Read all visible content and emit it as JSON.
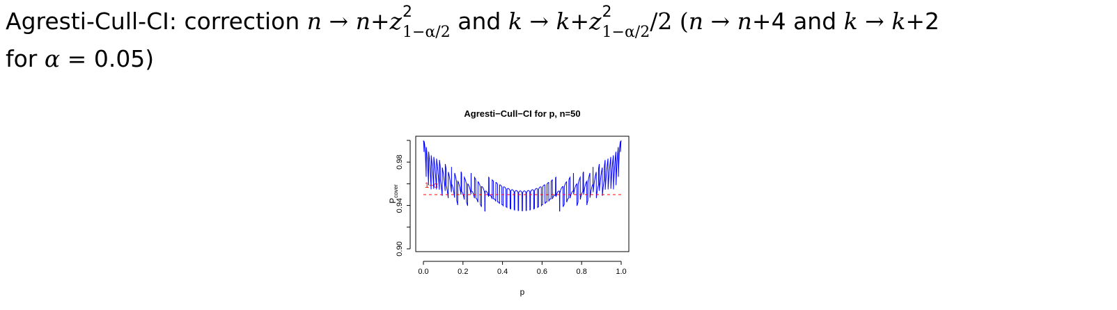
{
  "headline": {
    "line1_prefix": "Agresti-Cull-CI: correction ",
    "n": "n",
    "arrow": "→",
    "plus": "+",
    "z": "z",
    "sq": "2",
    "sub": "1−α/2",
    "and": "and",
    "k": "k",
    "half": "/2",
    "paren_open": "(",
    "n_plus_4": "4",
    "k_plus_2": "2",
    "line2_for": "for",
    "alpha": "α",
    "equals": "=",
    "alpha_value": "0.05)"
  },
  "chart_data": {
    "type": "line",
    "title": "Agresti−Cull−CI for p, n=50",
    "xlabel": "p",
    "ylabel_main": "P",
    "ylabel_sub": "cover",
    "xlim": [
      0,
      1
    ],
    "ylim": [
      0.9,
      1.0
    ],
    "xticks": [
      "0.0",
      "0.2",
      "0.4",
      "0.6",
      "0.8",
      "1.0"
    ],
    "xtick_values": [
      0,
      0.2,
      0.4,
      0.6,
      0.8,
      1.0
    ],
    "yticks": [
      "0.90",
      "0.94",
      "0.98"
    ],
    "ytick_values": [
      0.9,
      0.94,
      0.98
    ],
    "reference_line": {
      "label": "1−α",
      "y": 0.95,
      "color": "#ff0000",
      "style": "dashed"
    },
    "series": [
      {
        "color": "#0000ff",
        "n": 50,
        "note": "coverage probability curve"
      }
    ],
    "grid": false
  }
}
